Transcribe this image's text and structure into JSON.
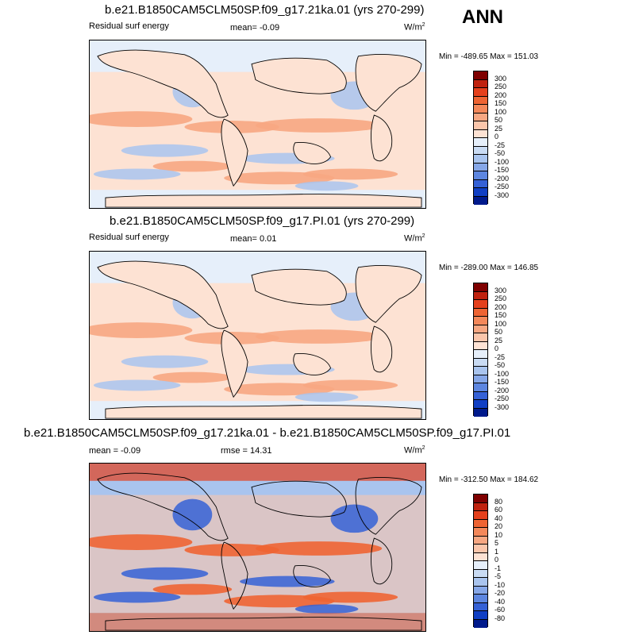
{
  "page": {
    "season": "ANN"
  },
  "panels": [
    {
      "title": "b.e21.B1850CAM5CLM50SP.f09_g17.21ka.01 (yrs 270-299)",
      "variable": "Residual surf energy",
      "stat": "mean=  -0.09",
      "units_base": "W/m",
      "units_exp": "2",
      "minmax": "Min = -489.65 Max = 151.03",
      "levels": [
        "300",
        "250",
        "200",
        "150",
        "100",
        "50",
        "25",
        "0",
        "-25",
        "-50",
        "-100",
        "-150",
        "-200",
        "-250",
        "-300"
      ],
      "colors": [
        "#7f0000",
        "#c0220f",
        "#e5401c",
        "#ee6433",
        "#f4885a",
        "#f7a782",
        "#fbc6ab",
        "#fde2d3",
        "#e6effa",
        "#c9dbf3",
        "#a9c4ee",
        "#86a7e8",
        "#5d86e0",
        "#3561d6",
        "#103fc4",
        "#001a8c"
      ]
    },
    {
      "title": "b.e21.B1850CAM5CLM50SP.f09_g17.PI.01 (yrs 270-299)",
      "variable": "Residual surf energy",
      "stat": "mean=  0.01",
      "units_base": "W/m",
      "units_exp": "2",
      "minmax": "Min = -289.00 Max = 146.85",
      "levels": [
        "300",
        "250",
        "200",
        "150",
        "100",
        "50",
        "25",
        "0",
        "-25",
        "-50",
        "-100",
        "-150",
        "-200",
        "-250",
        "-300"
      ],
      "colors": [
        "#7f0000",
        "#c0220f",
        "#e5401c",
        "#ee6433",
        "#f4885a",
        "#f7a782",
        "#fbc6ab",
        "#fde2d3",
        "#e6effa",
        "#c9dbf3",
        "#a9c4ee",
        "#86a7e8",
        "#5d86e0",
        "#3561d6",
        "#103fc4",
        "#001a8c"
      ]
    },
    {
      "title": "b.e21.B1850CAM5CLM50SP.f09_g17.21ka.01 - b.e21.B1850CAM5CLM50SP.f09_g17.PI.01",
      "variable": "mean =  -0.09",
      "stat": "rmse =  14.31",
      "units_base": "W/m",
      "units_exp": "2",
      "minmax": "Min = -312.50 Max = 184.62",
      "levels": [
        "80",
        "60",
        "40",
        "20",
        "10",
        "5",
        "1",
        "0",
        "-1",
        "-5",
        "-10",
        "-20",
        "-40",
        "-60",
        "-80"
      ],
      "colors": [
        "#7f0000",
        "#c0220f",
        "#e5401c",
        "#ee6433",
        "#f4885a",
        "#f7a782",
        "#fbc6ab",
        "#fde2d3",
        "#e6effa",
        "#c9dbf3",
        "#a9c4ee",
        "#86a7e8",
        "#5d86e0",
        "#3561d6",
        "#103fc4",
        "#001a8c"
      ]
    }
  ]
}
